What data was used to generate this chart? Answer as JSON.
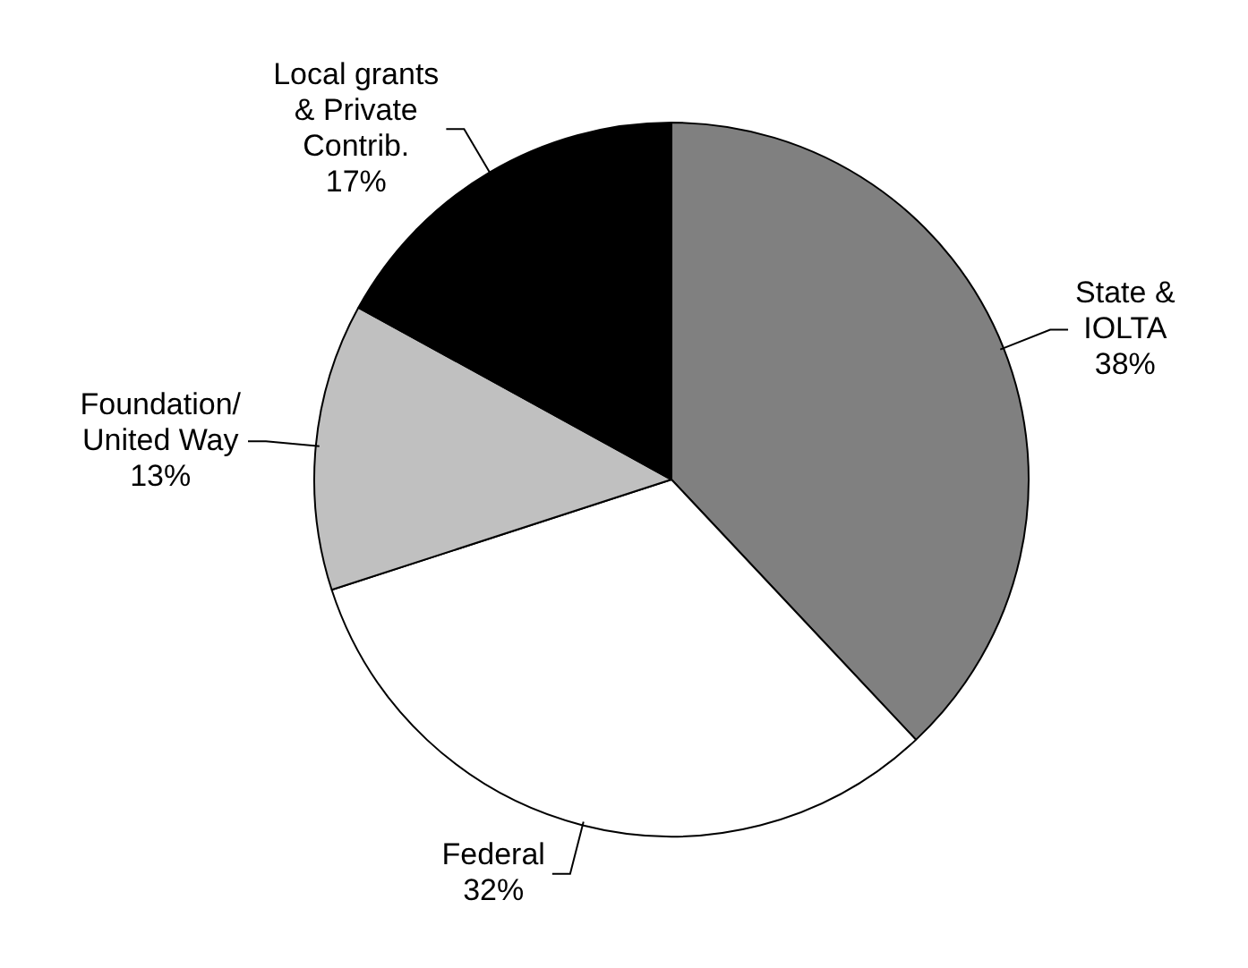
{
  "chart_data": {
    "type": "pie",
    "categories": [
      "State &\nIOLTA",
      "Federal",
      "Foundation/\nUnited Way",
      "Local grants\n& Private\nContrib."
    ],
    "values": [
      38,
      32,
      13,
      17
    ],
    "colors": [
      "#808080",
      "#ffffff",
      "#c0c0c0",
      "#000000"
    ],
    "value_labels": [
      "38%",
      "32%",
      "13%",
      "17%"
    ],
    "legend": false
  }
}
